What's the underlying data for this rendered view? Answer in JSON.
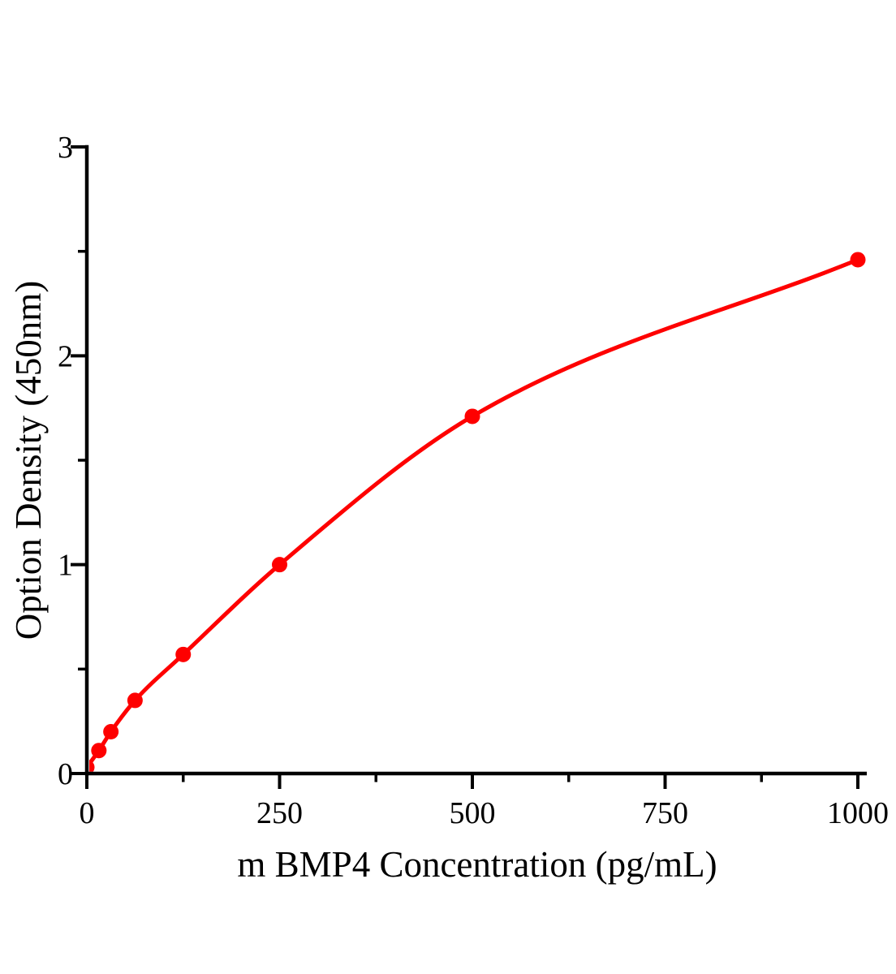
{
  "figure": {
    "background_color": "#ffffff",
    "plot_title": ""
  },
  "chart_data": {
    "type": "scatter",
    "subtype": "standard-curve-with-fitted-line",
    "title": "",
    "xlabel": "m BMP4 Concentration（pg/mL）",
    "ylabel": "Option Density（450nm）",
    "points": [
      {
        "x": 0,
        "y": 0.03
      },
      {
        "x": 15.6,
        "y": 0.11
      },
      {
        "x": 31.2,
        "y": 0.2
      },
      {
        "x": 62.5,
        "y": 0.35
      },
      {
        "x": 125,
        "y": 0.57
      },
      {
        "x": 250,
        "y": 1.0
      },
      {
        "x": 500,
        "y": 1.71
      },
      {
        "x": 1000,
        "y": 2.46
      }
    ],
    "xlim": [
      0,
      1012
    ],
    "ylim": [
      0,
      3
    ],
    "x_major_ticks": [
      0,
      250,
      500,
      750,
      1000
    ],
    "x_minor_ticks": [
      125,
      375,
      625,
      875
    ],
    "y_major_ticks": [
      0,
      1,
      2,
      3
    ],
    "y_minor_ticks": [
      0.5,
      1.5,
      2.5
    ],
    "grid": false,
    "legend": "none",
    "curve_color": "#fe0000",
    "marker_color": "#fe0000",
    "axis_color": "#000000"
  }
}
